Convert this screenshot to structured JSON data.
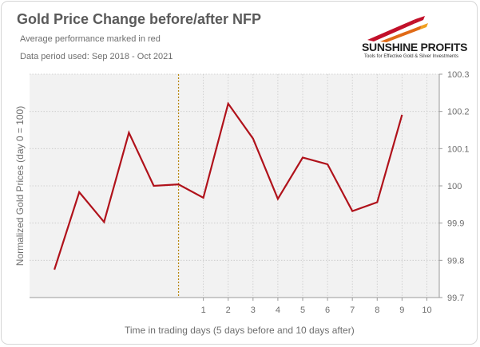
{
  "header": {
    "title": "Gold Price Change before/after NFP",
    "subtitle": "Average performance marked in red",
    "period": "Data period used: Sep 2018 - Oct 2021"
  },
  "logo": {
    "wordmark": "SUNSHINE PROFITS",
    "tagline": "Tools for Effective Gold & Silver Investments",
    "colors": [
      "#e06a16",
      "#c2102a",
      "#f0a020"
    ]
  },
  "chart_data": {
    "type": "line",
    "xlabel": "Time in trading days  (5 days before and 10 days after)",
    "ylabel": "Normalized Gold Prices (day 0 = 100)",
    "x": [
      -5,
      -4,
      -3,
      -2,
      -1,
      0,
      1,
      2,
      3,
      4,
      5,
      6,
      7,
      8,
      9,
      10
    ],
    "x_tick_labels": [
      "1",
      "2",
      "3",
      "4",
      "5",
      "6",
      "7",
      "8",
      "9",
      "10"
    ],
    "x_tick_values": [
      1,
      2,
      3,
      4,
      5,
      6,
      7,
      8,
      9,
      10
    ],
    "xlim": [
      -6,
      10.5
    ],
    "ylim": [
      99.7,
      100.3
    ],
    "y_ticks": [
      99.7,
      99.8,
      99.9,
      100,
      100.1,
      100.2,
      100.3
    ],
    "y_tick_labels": [
      "99.7",
      "99.8",
      "99.9",
      "100",
      "100.1",
      "100.2",
      "100.3"
    ],
    "series": [
      {
        "color": "#b0121b",
        "values": [
          99.775,
          99.983,
          99.903,
          100.143,
          100.0,
          100.004,
          99.968,
          100.221,
          100.127,
          99.965,
          100.076,
          100.058,
          99.932,
          99.956,
          100.191,
          null
        ]
      }
    ],
    "event_line": {
      "x": 0,
      "color": "#b8860b"
    },
    "grid": true,
    "y_axis_side": "right",
    "plot_background": "#f2f2f2"
  }
}
